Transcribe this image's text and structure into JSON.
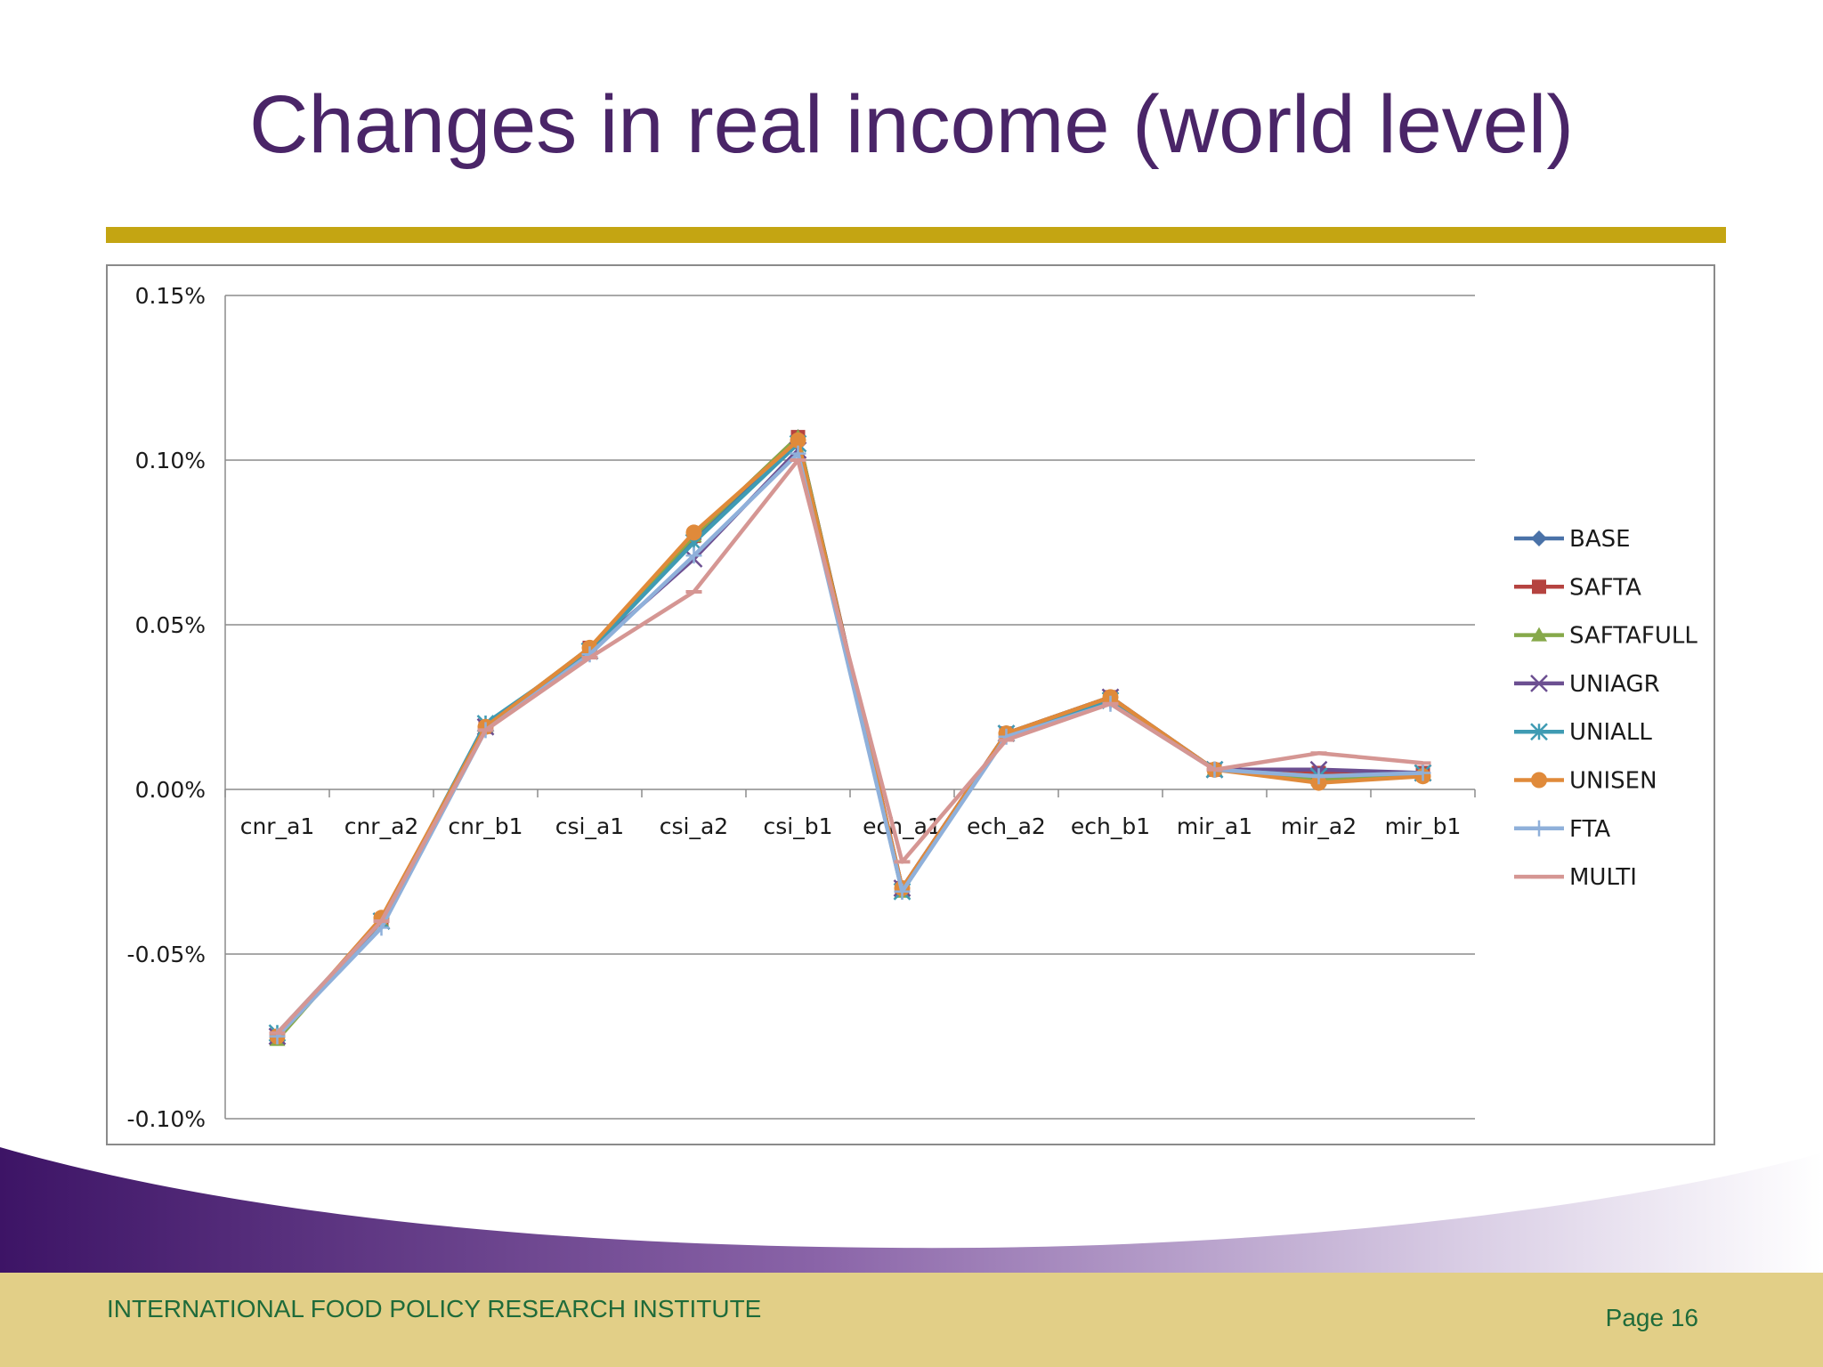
{
  "slide": {
    "title": "Changes in real income (world level)",
    "footer_org": "INTERNATIONAL FOOD POLICY RESEARCH INSTITUTE",
    "page_label": "Page 16"
  },
  "colors": {
    "title": "#4a2568",
    "rule": "#c4a512",
    "footer_band": "#e2cf87",
    "footer_text": "#1f6b3a",
    "wave_start": "#3d1466",
    "wave_end": "#ffffff"
  },
  "chart_data": {
    "type": "line",
    "title": "",
    "xlabel": "",
    "ylabel": "",
    "ylim": [
      -0.1,
      0.15
    ],
    "yticks": [
      -0.1,
      -0.05,
      0.0,
      0.05,
      0.1,
      0.15
    ],
    "ytick_labels": [
      "-0.10%",
      "-0.05%",
      "0.00%",
      "0.05%",
      "0.10%",
      "0.15%"
    ],
    "y_unit": "%",
    "grid": true,
    "legend_position": "right",
    "categories": [
      "cnr_a1",
      "cnr_a2",
      "cnr_b1",
      "csi_a1",
      "csi_a2",
      "csi_b1",
      "ech_a1",
      "ech_a2",
      "ech_b1",
      "mir_a1",
      "mir_a2",
      "mir_b1"
    ],
    "series": [
      {
        "name": "BASE",
        "color": "#4a72a8",
        "marker": "diamond",
        "values": [
          -0.075,
          -0.04,
          0.019,
          0.042,
          0.076,
          0.107,
          -0.03,
          0.017,
          0.028,
          0.006,
          0.004,
          0.005
        ]
      },
      {
        "name": "SAFTA",
        "color": "#b54340",
        "marker": "square",
        "values": [
          -0.075,
          -0.04,
          0.019,
          0.043,
          0.077,
          0.107,
          -0.03,
          0.017,
          0.028,
          0.006,
          0.005,
          0.005
        ]
      },
      {
        "name": "SAFTAFULL",
        "color": "#86a94a",
        "marker": "triangle",
        "values": [
          -0.076,
          -0.04,
          0.019,
          0.043,
          0.077,
          0.107,
          -0.031,
          0.017,
          0.028,
          0.006,
          0.003,
          0.005
        ]
      },
      {
        "name": "UNIAGR",
        "color": "#6c4f91",
        "marker": "x",
        "values": [
          -0.075,
          -0.04,
          0.019,
          0.042,
          0.07,
          0.103,
          -0.03,
          0.017,
          0.028,
          0.006,
          0.006,
          0.005
        ]
      },
      {
        "name": "UNIALL",
        "color": "#3f9bb3",
        "marker": "star",
        "values": [
          -0.074,
          -0.04,
          0.02,
          0.042,
          0.075,
          0.105,
          -0.031,
          0.017,
          0.027,
          0.006,
          0.004,
          0.005
        ]
      },
      {
        "name": "UNISEN",
        "color": "#e08a3a",
        "marker": "circle",
        "values": [
          -0.075,
          -0.039,
          0.019,
          0.043,
          0.078,
          0.106,
          -0.03,
          0.017,
          0.028,
          0.006,
          0.002,
          0.004
        ]
      },
      {
        "name": "FTA",
        "color": "#8fb0da",
        "marker": "plus",
        "values": [
          -0.075,
          -0.042,
          0.018,
          0.041,
          0.071,
          0.102,
          -0.031,
          0.016,
          0.026,
          0.006,
          0.004,
          0.005
        ]
      },
      {
        "name": "MULTI",
        "color": "#d59693",
        "marker": "dash",
        "values": [
          -0.074,
          -0.04,
          0.018,
          0.04,
          0.06,
          0.1,
          -0.022,
          0.015,
          0.026,
          0.006,
          0.011,
          0.008
        ]
      }
    ]
  }
}
